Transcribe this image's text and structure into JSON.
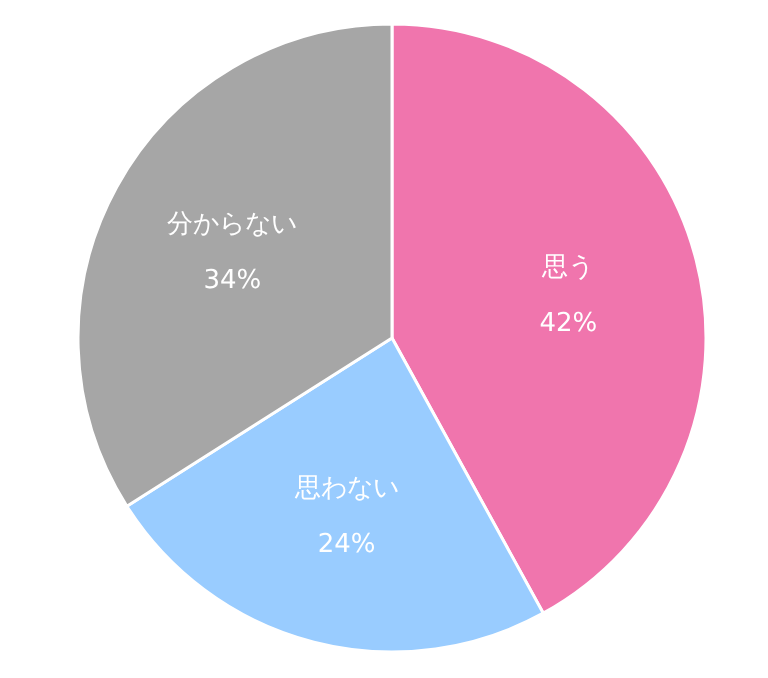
{
  "chart_data": {
    "type": "pie",
    "categories": [
      "思う",
      "思わない",
      "分からない"
    ],
    "values": [
      42,
      24,
      34
    ],
    "colors": [
      "#f075ad",
      "#99ccff",
      "#a6a6a6"
    ],
    "value_labels": [
      "42%",
      "24%",
      "34%"
    ]
  }
}
